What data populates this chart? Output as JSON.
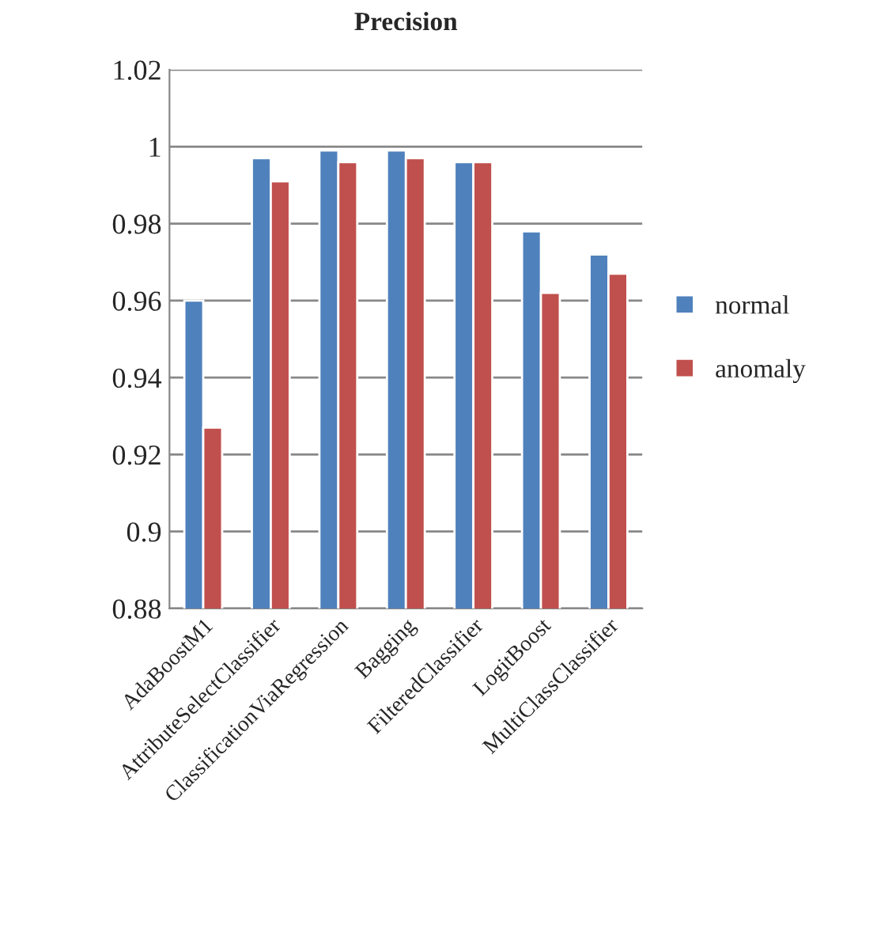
{
  "chart_data": {
    "type": "bar",
    "title": "Precision",
    "categories": [
      "AdaBoostM1",
      "AttributeSelectClassifier",
      "ClassificationViaRegression",
      "Bagging",
      "FilteredClassifier",
      "LogitBoost",
      "MultiClassClassifier"
    ],
    "series": [
      {
        "name": "normal",
        "color": "#4f81bd",
        "values": [
          0.96,
          0.997,
          0.999,
          0.999,
          0.996,
          0.978,
          0.972
        ]
      },
      {
        "name": "anomaly",
        "color": "#c0504d",
        "values": [
          0.927,
          0.991,
          0.996,
          0.997,
          0.996,
          0.962,
          0.967
        ]
      }
    ],
    "ylim": [
      0.88,
      1.02
    ],
    "yticks": [
      0.88,
      0.9,
      0.92,
      0.94,
      0.96,
      0.98,
      1,
      1.02
    ],
    "grid": "y",
    "legend": "right"
  }
}
